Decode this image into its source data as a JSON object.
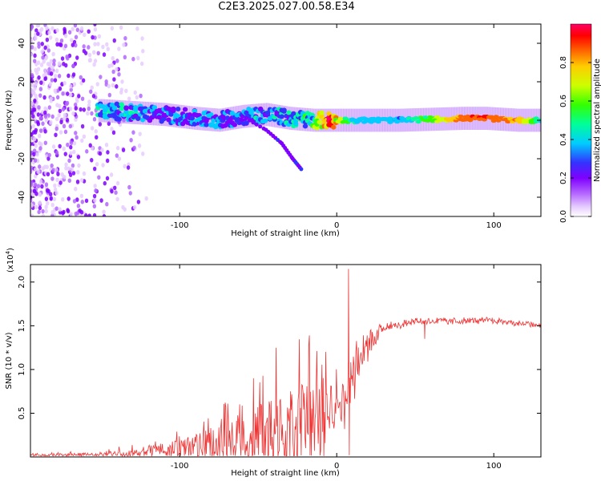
{
  "title": "C2E3.2025.027.00.58.E34",
  "chart_data": [
    {
      "type": "heatmap",
      "subtype": "spectrogram",
      "xlabel": "Height of straight line (km)",
      "ylabel": "Frequency (Hz)",
      "xlim": [
        -195,
        130
      ],
      "ylim": [
        -50,
        50
      ],
      "xticks": [
        -100,
        0,
        100
      ],
      "xtick_labels": [
        "-100",
        "0",
        "100"
      ],
      "yticks": [
        -40,
        -20,
        0,
        20,
        40
      ],
      "ytick_labels": [
        "-40",
        "-20",
        "0",
        "20",
        "40"
      ],
      "colorbar": {
        "label": "Normalized spectral amplitude",
        "range": [
          0,
          1
        ],
        "ticks": [
          0.0,
          0.2,
          0.4,
          0.6,
          0.8
        ],
        "tick_labels": [
          "0.0",
          "0.2",
          "0.4",
          "0.6",
          "0.8"
        ],
        "colormap": [
          "#ffffff",
          "#cc99ff",
          "#7f00ff",
          "#3333ff",
          "#00ccff",
          "#00ff99",
          "#33ff00",
          "#ccff00",
          "#ffcc00",
          "#ff6600",
          "#ff0000",
          "#ff0066"
        ]
      },
      "ridge": [
        {
          "x": -150,
          "f": 5,
          "a": 0.45
        },
        {
          "x": -130,
          "f": 4,
          "a": 0.35
        },
        {
          "x": -110,
          "f": 3,
          "a": 0.3
        },
        {
          "x": -90,
          "f": 1,
          "a": 0.32
        },
        {
          "x": -75,
          "f": 0,
          "a": 0.3
        },
        {
          "x": -60,
          "f": 2,
          "a": 0.35
        },
        {
          "x": -45,
          "f": 3,
          "a": 0.38
        },
        {
          "x": -30,
          "f": 1,
          "a": 0.4
        },
        {
          "x": -15,
          "f": 0,
          "a": 0.5
        },
        {
          "x": -5,
          "f": 0,
          "a": 0.95
        },
        {
          "x": 10,
          "f": 0,
          "a": 0.45
        },
        {
          "x": 40,
          "f": 0,
          "a": 0.4
        },
        {
          "x": 80,
          "f": 1,
          "a": 0.9
        },
        {
          "x": 95,
          "f": 1,
          "a": 0.92
        },
        {
          "x": 115,
          "f": 0,
          "a": 0.85
        },
        {
          "x": 130,
          "f": 0,
          "a": 0.5
        }
      ],
      "branch": [
        {
          "x": -60,
          "f": 2
        },
        {
          "x": -45,
          "f": -5
        },
        {
          "x": -35,
          "f": -12
        },
        {
          "x": -28,
          "f": -20
        },
        {
          "x": -22,
          "f": -26
        }
      ]
    },
    {
      "type": "line",
      "xlabel": "Height of straight line (km)",
      "ylabel": "SNR (10 * v/v)",
      "scale_label": "(x10",
      "scale_exponent": "4",
      "scale_suffix": ")",
      "color": "#ee3333",
      "xlim": [
        -195,
        130
      ],
      "ylim": [
        0,
        2.2
      ],
      "xticks": [
        -100,
        0,
        100
      ],
      "xtick_labels": [
        "-100",
        "0",
        "100"
      ],
      "yticks": [
        0.5,
        1.0,
        1.5,
        2.0
      ],
      "ytick_labels": [
        "0.5",
        "1.0",
        "1.5",
        "2.0"
      ],
      "envelope": [
        {
          "x": -195,
          "y": 0.02,
          "spread": 0.02
        },
        {
          "x": -150,
          "y": 0.03,
          "spread": 0.03
        },
        {
          "x": -120,
          "y": 0.06,
          "spread": 0.08
        },
        {
          "x": -100,
          "y": 0.1,
          "spread": 0.15
        },
        {
          "x": -80,
          "y": 0.15,
          "spread": 0.25
        },
        {
          "x": -60,
          "y": 0.2,
          "spread": 0.35
        },
        {
          "x": -40,
          "y": 0.28,
          "spread": 0.6
        },
        {
          "x": -20,
          "y": 0.35,
          "spread": 0.75
        },
        {
          "x": -5,
          "y": 0.5,
          "spread": 0.6
        },
        {
          "x": 5,
          "y": 0.8,
          "spread": 0.4
        },
        {
          "x": 10,
          "y": 1.0,
          "spread": 0.3
        },
        {
          "x": 20,
          "y": 1.3,
          "spread": 0.15
        },
        {
          "x": 30,
          "y": 1.48,
          "spread": 0.06
        },
        {
          "x": 50,
          "y": 1.55,
          "spread": 0.04
        },
        {
          "x": 100,
          "y": 1.56,
          "spread": 0.04
        },
        {
          "x": 130,
          "y": 1.5,
          "spread": 0.03
        }
      ],
      "features": [
        {
          "x": 7.5,
          "y": 2.15,
          "note": "spike"
        },
        {
          "x": 8,
          "y": 0.02,
          "note": "dip"
        },
        {
          "x": 56,
          "y": 1.35,
          "note": "dip"
        }
      ]
    }
  ]
}
